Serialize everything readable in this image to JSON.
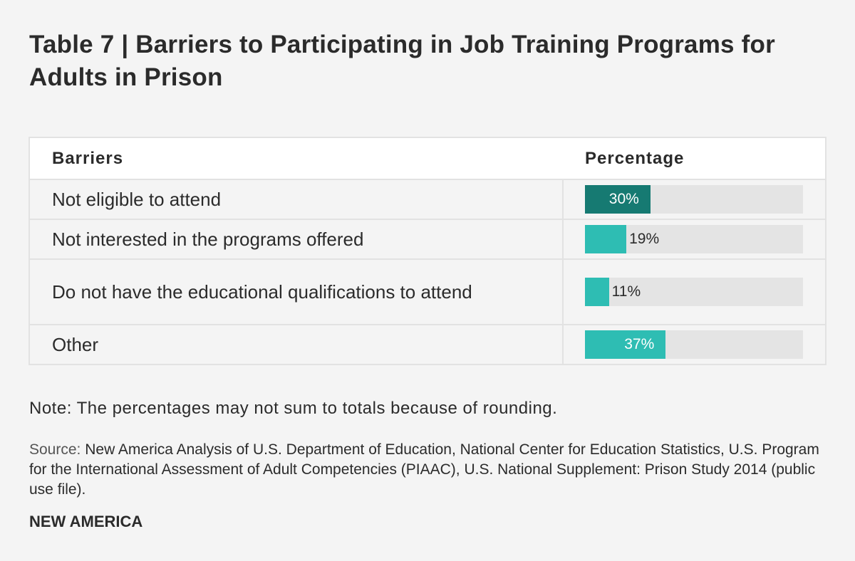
{
  "title": "Table 7 | Barriers to Participating in Job Training Programs for Adults in Prison",
  "table": {
    "header": {
      "barriers": "Barriers",
      "percentage": "Percentage"
    }
  },
  "colors": {
    "highlight": "#167a72",
    "bar": "#2ebdb3",
    "track": "#e4e4e4"
  },
  "chart_data": {
    "type": "table",
    "title": "Table 7 | Barriers to Participating in Job Training Programs for Adults in Prison",
    "columns": [
      "Barriers",
      "Percentage"
    ],
    "categories": [
      "Not eligible to attend",
      "Not interested in the programs offered",
      "Do not have the educational qualifications to attend",
      "Other"
    ],
    "values": [
      30,
      19,
      11,
      37
    ],
    "value_labels": [
      "30%",
      "19%",
      "11%",
      "37%"
    ],
    "highlight_index": 0,
    "ylim": [
      0,
      100
    ]
  },
  "note": "Note: The percentages may not sum to totals because of rounding.",
  "source": {
    "label": "Source:",
    "text": "New America Analysis of U.S. Department of Education, National Center for Education Statistics, U.S. Program for the International Assessment of Adult Competencies (PIAAC), U.S. National Supplement: Prison Study 2014 (public use file)."
  },
  "brand": "NEW AMERICA"
}
